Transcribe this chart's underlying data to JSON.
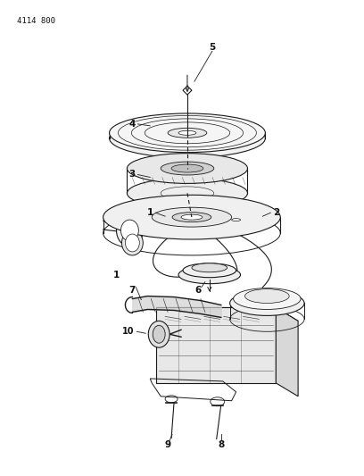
{
  "title": "4114 800",
  "background_color": "#ffffff",
  "line_color": "#1a1a1a",
  "figsize": [
    4.08,
    5.33
  ],
  "dpi": 100
}
